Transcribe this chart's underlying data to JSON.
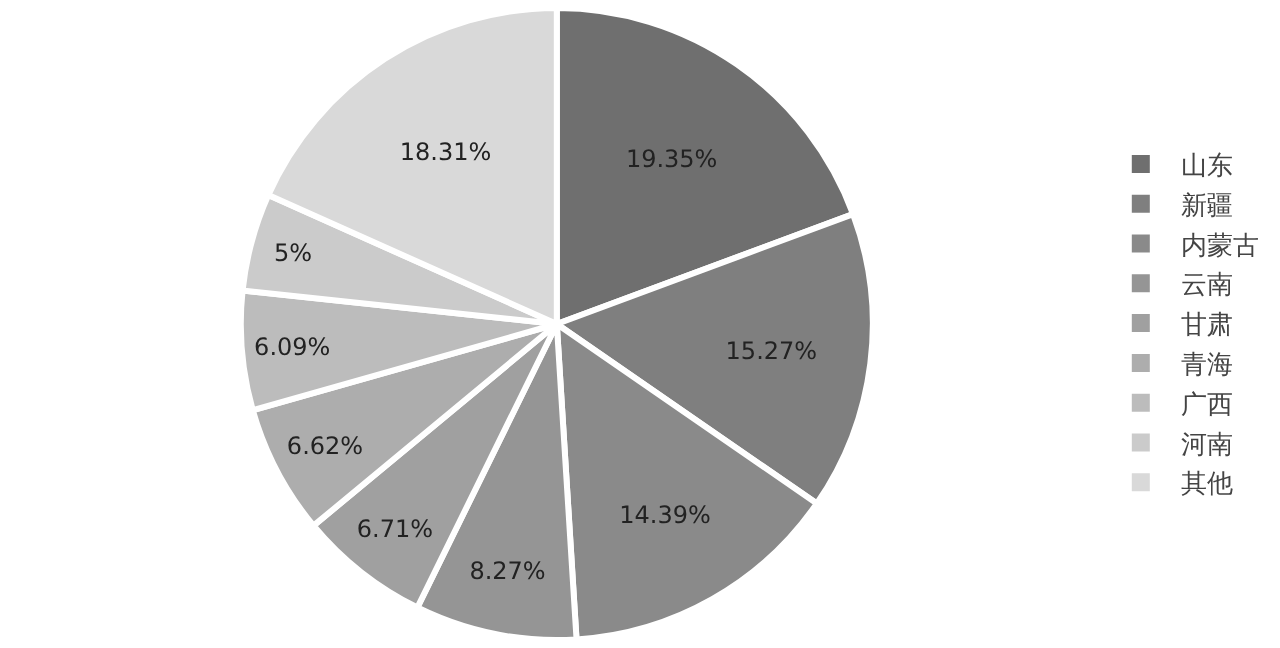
{
  "chart_data": {
    "type": "pie",
    "categories": [
      "山东",
      "新疆",
      "内蒙古",
      "云南",
      "甘肃",
      "青海",
      "广西",
      "河南",
      "其他"
    ],
    "values": [
      19.35,
      15.27,
      14.39,
      8.27,
      6.71,
      6.62,
      6.09,
      5,
      18.31
    ],
    "value_labels": [
      "19.35%",
      "15.27%",
      "14.39%",
      "8.27%",
      "6.71%",
      "6.62%",
      "6.09%",
      "5%",
      "18.31%"
    ],
    "colors": [
      "#6f6f6f",
      "#7f7f7f",
      "#8a8a8a",
      "#959595",
      "#a0a0a0",
      "#adadad",
      "#bcbcbc",
      "#cbcbcb",
      "#d9d9d9"
    ],
    "legend": "right"
  }
}
